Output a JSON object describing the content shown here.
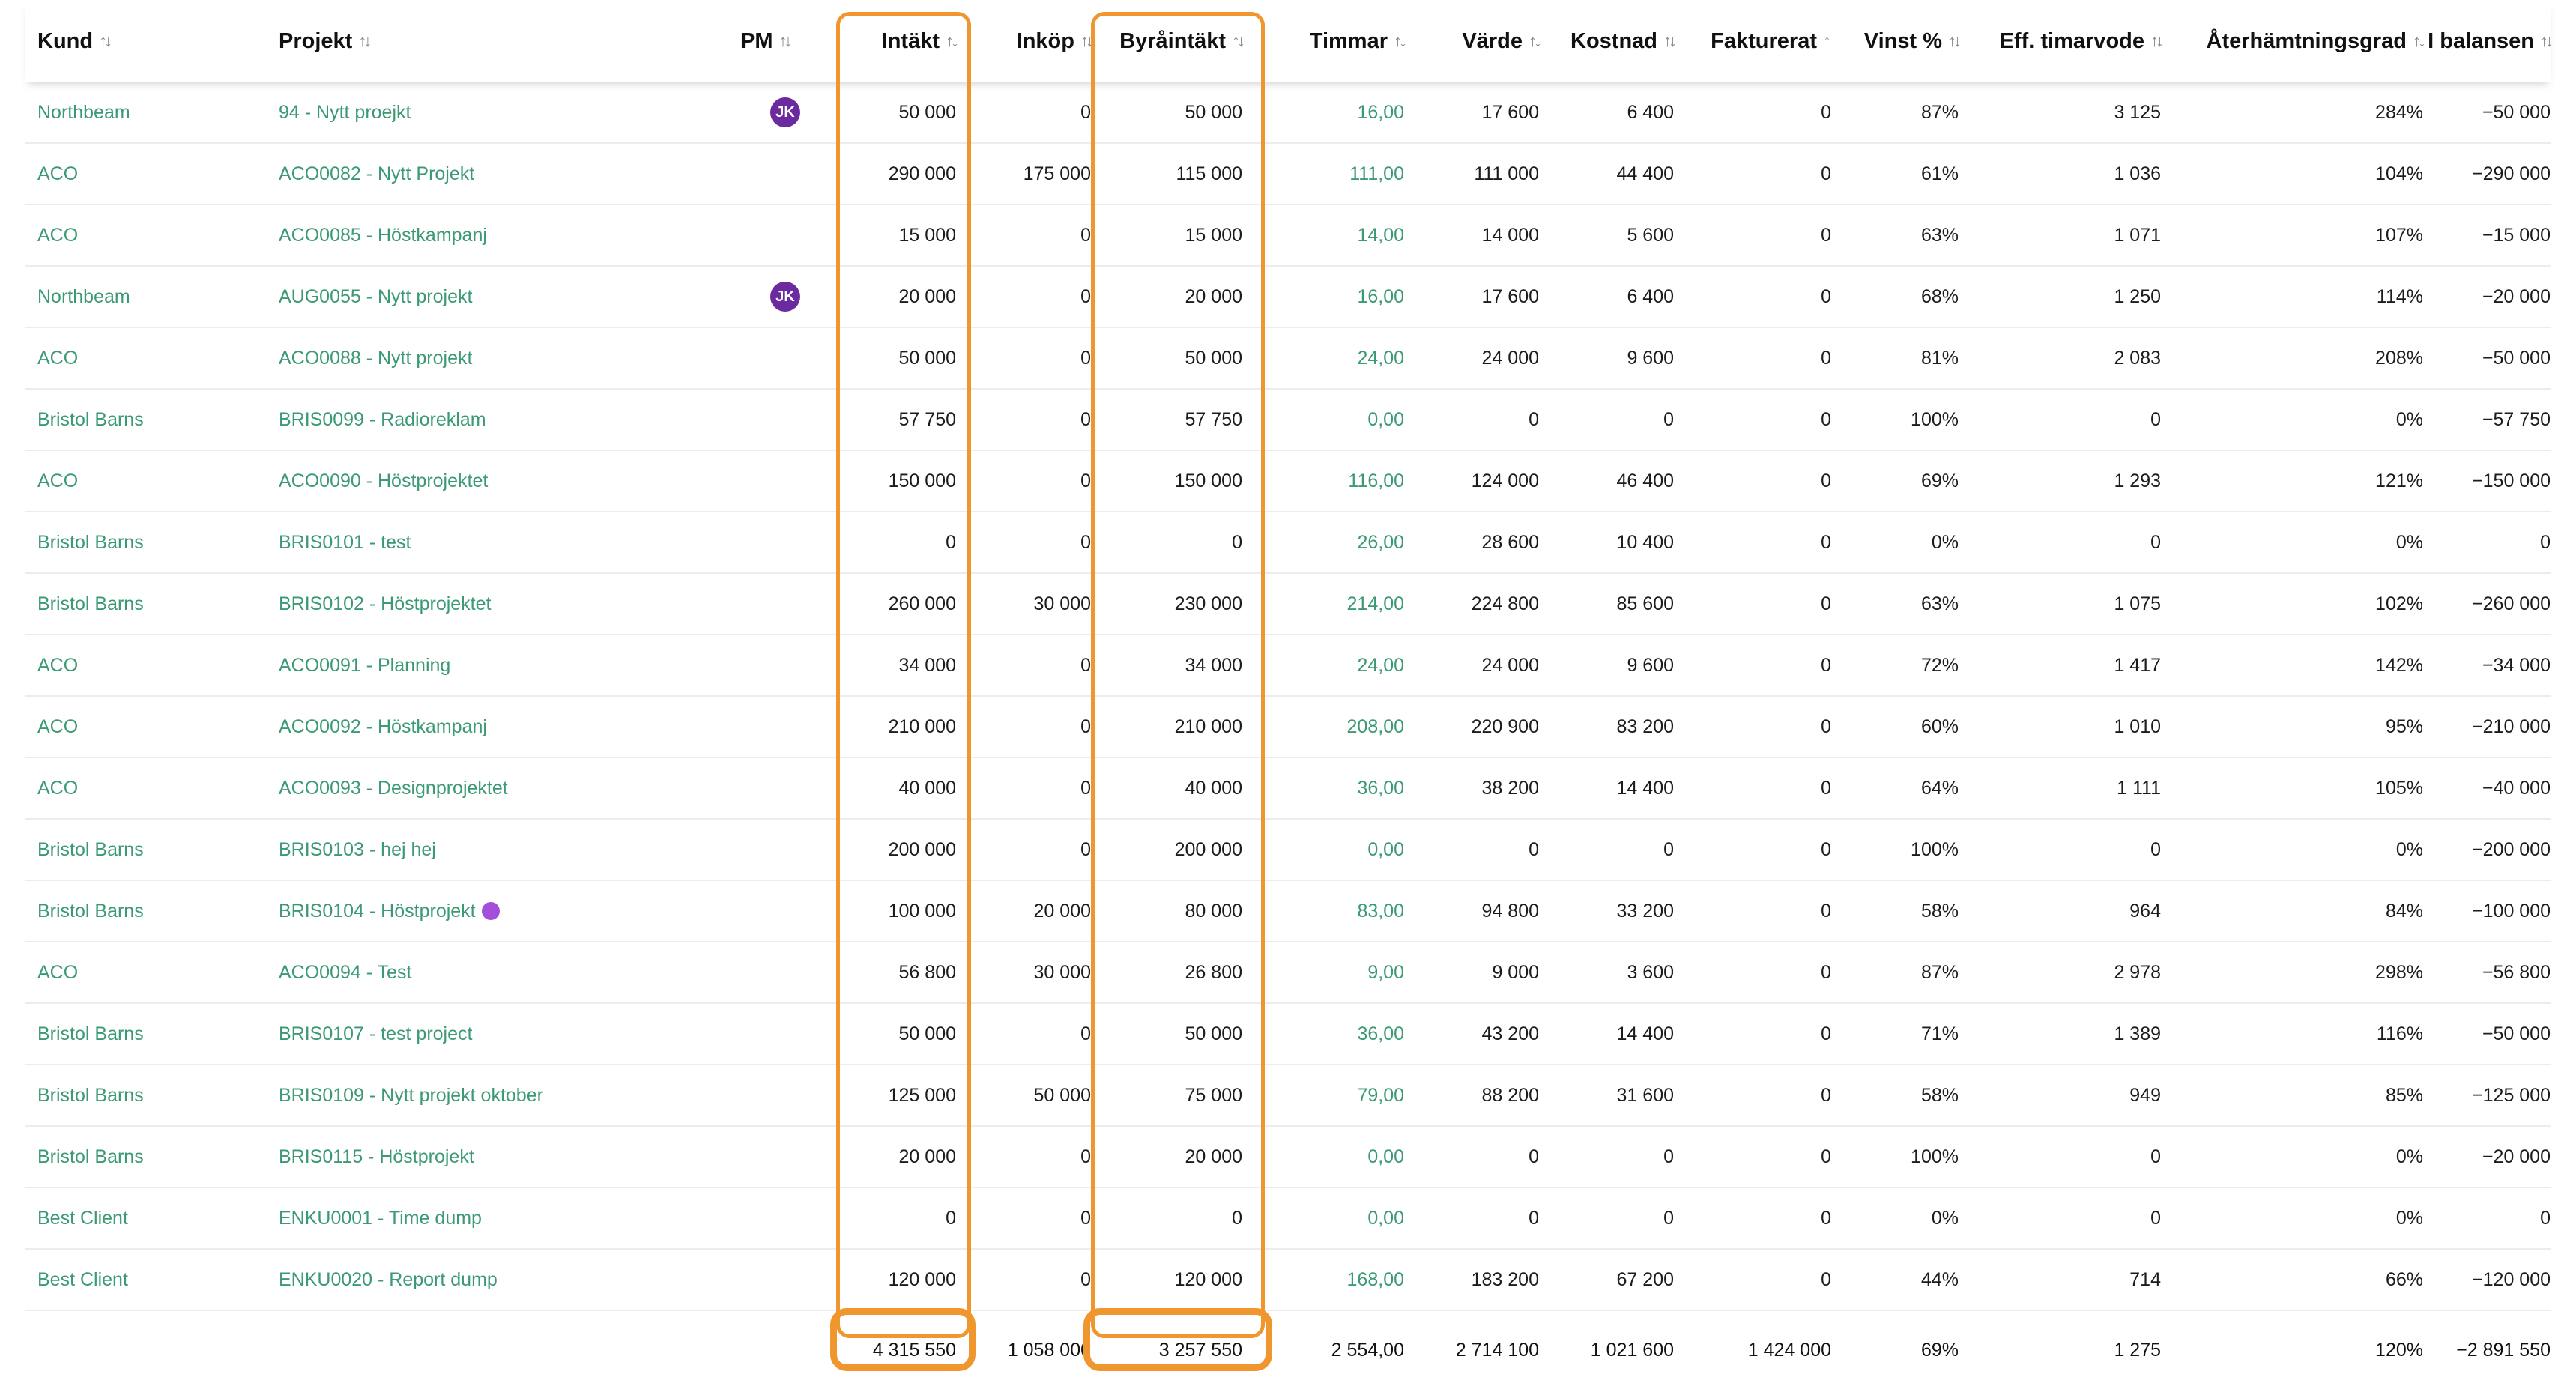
{
  "columns": {
    "kund": "Kund",
    "projekt": "Projekt",
    "pm": "PM",
    "intakt": "Intäkt",
    "inkop": "Inköp",
    "byraintakt": "Byråintäkt",
    "timmar": "Timmar",
    "varde": "Värde",
    "kostnad": "Kostnad",
    "fakturerat": "Fakturerat",
    "vinst": "Vinst %",
    "eff": "Eff. timarvode",
    "ater": "Återhämtningsgrad",
    "balans": "I balansen"
  },
  "sort_icons": {
    "default": "sort-arrows-icon",
    "active": "sort-ascending-icon",
    "default_glyph": "↑↓",
    "active_glyph": "↑"
  },
  "colors": {
    "link_green": "#3b9a74",
    "avatar_purple": "#6b2aa0",
    "dot_purple": "#a34fdc",
    "highlight_orange": "#f0962e"
  },
  "rows": [
    {
      "kund": "Northbeam",
      "projekt": "94 - Nytt proejkt",
      "pm": "JK",
      "intakt": "50 000",
      "inkop": "0",
      "byraintakt": "50 000",
      "timmar": "16,00",
      "varde": "17 600",
      "kostnad": "6 400",
      "fakturerat": "0",
      "vinst": "87%",
      "eff": "3 125",
      "ater": "284%",
      "balans": "−50 000"
    },
    {
      "kund": "ACO",
      "projekt": "ACO0082 - Nytt Projekt",
      "pm": "",
      "intakt": "290 000",
      "inkop": "175 000",
      "byraintakt": "115 000",
      "timmar": "111,00",
      "varde": "111 000",
      "kostnad": "44 400",
      "fakturerat": "0",
      "vinst": "61%",
      "eff": "1 036",
      "ater": "104%",
      "balans": "−290 000"
    },
    {
      "kund": "ACO",
      "projekt": "ACO0085 - Höstkampanj",
      "pm": "",
      "intakt": "15 000",
      "inkop": "0",
      "byraintakt": "15 000",
      "timmar": "14,00",
      "varde": "14 000",
      "kostnad": "5 600",
      "fakturerat": "0",
      "vinst": "63%",
      "eff": "1 071",
      "ater": "107%",
      "balans": "−15 000"
    },
    {
      "kund": "Northbeam",
      "projekt": "AUG0055 - Nytt projekt",
      "pm": "JK",
      "intakt": "20 000",
      "inkop": "0",
      "byraintakt": "20 000",
      "timmar": "16,00",
      "varde": "17 600",
      "kostnad": "6 400",
      "fakturerat": "0",
      "vinst": "68%",
      "eff": "1 250",
      "ater": "114%",
      "balans": "−20 000"
    },
    {
      "kund": "ACO",
      "projekt": "ACO0088 - Nytt projekt",
      "pm": "",
      "intakt": "50 000",
      "inkop": "0",
      "byraintakt": "50 000",
      "timmar": "24,00",
      "varde": "24 000",
      "kostnad": "9 600",
      "fakturerat": "0",
      "vinst": "81%",
      "eff": "2 083",
      "ater": "208%",
      "balans": "−50 000"
    },
    {
      "kund": "Bristol Barns",
      "projekt": "BRIS0099 - Radioreklam",
      "pm": "",
      "intakt": "57 750",
      "inkop": "0",
      "byraintakt": "57 750",
      "timmar": "0,00",
      "varde": "0",
      "kostnad": "0",
      "fakturerat": "0",
      "vinst": "100%",
      "eff": "0",
      "ater": "0%",
      "balans": "−57 750"
    },
    {
      "kund": "ACO",
      "projekt": "ACO0090 - Höstprojektet",
      "pm": "",
      "intakt": "150 000",
      "inkop": "0",
      "byraintakt": "150 000",
      "timmar": "116,00",
      "varde": "124 000",
      "kostnad": "46 400",
      "fakturerat": "0",
      "vinst": "69%",
      "eff": "1 293",
      "ater": "121%",
      "balans": "−150 000"
    },
    {
      "kund": "Bristol Barns",
      "projekt": "BRIS0101 - test",
      "pm": "",
      "intakt": "0",
      "inkop": "0",
      "byraintakt": "0",
      "timmar": "26,00",
      "varde": "28 600",
      "kostnad": "10 400",
      "fakturerat": "0",
      "vinst": "0%",
      "eff": "0",
      "ater": "0%",
      "balans": "0"
    },
    {
      "kund": "Bristol Barns",
      "projekt": "BRIS0102 - Höstprojektet",
      "pm": "",
      "intakt": "260 000",
      "inkop": "30 000",
      "byraintakt": "230 000",
      "timmar": "214,00",
      "varde": "224 800",
      "kostnad": "85 600",
      "fakturerat": "0",
      "vinst": "63%",
      "eff": "1 075",
      "ater": "102%",
      "balans": "−260 000"
    },
    {
      "kund": "ACO",
      "projekt": "ACO0091 - Planning",
      "pm": "",
      "intakt": "34 000",
      "inkop": "0",
      "byraintakt": "34 000",
      "timmar": "24,00",
      "varde": "24 000",
      "kostnad": "9 600",
      "fakturerat": "0",
      "vinst": "72%",
      "eff": "1 417",
      "ater": "142%",
      "balans": "−34 000"
    },
    {
      "kund": "ACO",
      "projekt": "ACO0092 - Höstkampanj",
      "pm": "",
      "intakt": "210 000",
      "inkop": "0",
      "byraintakt": "210 000",
      "timmar": "208,00",
      "varde": "220 900",
      "kostnad": "83 200",
      "fakturerat": "0",
      "vinst": "60%",
      "eff": "1 010",
      "ater": "95%",
      "balans": "−210 000"
    },
    {
      "kund": "ACO",
      "projekt": "ACO0093 - Designprojektet",
      "pm": "",
      "intakt": "40 000",
      "inkop": "0",
      "byraintakt": "40 000",
      "timmar": "36,00",
      "varde": "38 200",
      "kostnad": "14 400",
      "fakturerat": "0",
      "vinst": "64%",
      "eff": "1 111",
      "ater": "105%",
      "balans": "−40 000"
    },
    {
      "kund": "Bristol Barns",
      "projekt": "BRIS0103 - hej hej",
      "pm": "",
      "intakt": "200 000",
      "inkop": "0",
      "byraintakt": "200 000",
      "timmar": "0,00",
      "varde": "0",
      "kostnad": "0",
      "fakturerat": "0",
      "vinst": "100%",
      "eff": "0",
      "ater": "0%",
      "balans": "−200 000"
    },
    {
      "kund": "Bristol Barns",
      "projekt": "BRIS0104 - Höstprojekt",
      "pm": "",
      "dot": true,
      "intakt": "100 000",
      "inkop": "20 000",
      "byraintakt": "80 000",
      "timmar": "83,00",
      "varde": "94 800",
      "kostnad": "33 200",
      "fakturerat": "0",
      "vinst": "58%",
      "eff": "964",
      "ater": "84%",
      "balans": "−100 000"
    },
    {
      "kund": "ACO",
      "projekt": "ACO0094 - Test",
      "pm": "",
      "intakt": "56 800",
      "inkop": "30 000",
      "byraintakt": "26 800",
      "timmar": "9,00",
      "varde": "9 000",
      "kostnad": "3 600",
      "fakturerat": "0",
      "vinst": "87%",
      "eff": "2 978",
      "ater": "298%",
      "balans": "−56 800"
    },
    {
      "kund": "Bristol Barns",
      "projekt": "BRIS0107 - test project",
      "pm": "",
      "intakt": "50 000",
      "inkop": "0",
      "byraintakt": "50 000",
      "timmar": "36,00",
      "varde": "43 200",
      "kostnad": "14 400",
      "fakturerat": "0",
      "vinst": "71%",
      "eff": "1 389",
      "ater": "116%",
      "balans": "−50 000"
    },
    {
      "kund": "Bristol Barns",
      "projekt": "BRIS0109 - Nytt projekt oktober",
      "pm": "",
      "intakt": "125 000",
      "inkop": "50 000",
      "byraintakt": "75 000",
      "timmar": "79,00",
      "varde": "88 200",
      "kostnad": "31 600",
      "fakturerat": "0",
      "vinst": "58%",
      "eff": "949",
      "ater": "85%",
      "balans": "−125 000"
    },
    {
      "kund": "Bristol Barns",
      "projekt": "BRIS0115 - Höstprojekt",
      "pm": "",
      "intakt": "20 000",
      "inkop": "0",
      "byraintakt": "20 000",
      "timmar": "0,00",
      "varde": "0",
      "kostnad": "0",
      "fakturerat": "0",
      "vinst": "100%",
      "eff": "0",
      "ater": "0%",
      "balans": "−20 000"
    },
    {
      "kund": "Best Client",
      "projekt": "ENKU0001 - Time dump",
      "pm": "",
      "intakt": "0",
      "inkop": "0",
      "byraintakt": "0",
      "timmar": "0,00",
      "varde": "0",
      "kostnad": "0",
      "fakturerat": "0",
      "vinst": "0%",
      "eff": "0",
      "ater": "0%",
      "balans": "0"
    },
    {
      "kund": "Best Client",
      "projekt": "ENKU0020 - Report dump",
      "pm": "",
      "intakt": "120 000",
      "inkop": "0",
      "byraintakt": "120 000",
      "timmar": "168,00",
      "varde": "183 200",
      "kostnad": "67 200",
      "fakturerat": "0",
      "vinst": "44%",
      "eff": "714",
      "ater": "66%",
      "balans": "−120 000"
    }
  ],
  "totals": {
    "intakt": "4 315 550",
    "inkop": "1 058 000",
    "byraintakt": "3 257 550",
    "timmar": "2 554,00",
    "varde": "2 714 100",
    "kostnad": "1 021 600",
    "fakturerat": "1 424 000",
    "vinst": "69%",
    "eff": "1 275",
    "ater": "120%",
    "balans": "−2 891 550"
  }
}
